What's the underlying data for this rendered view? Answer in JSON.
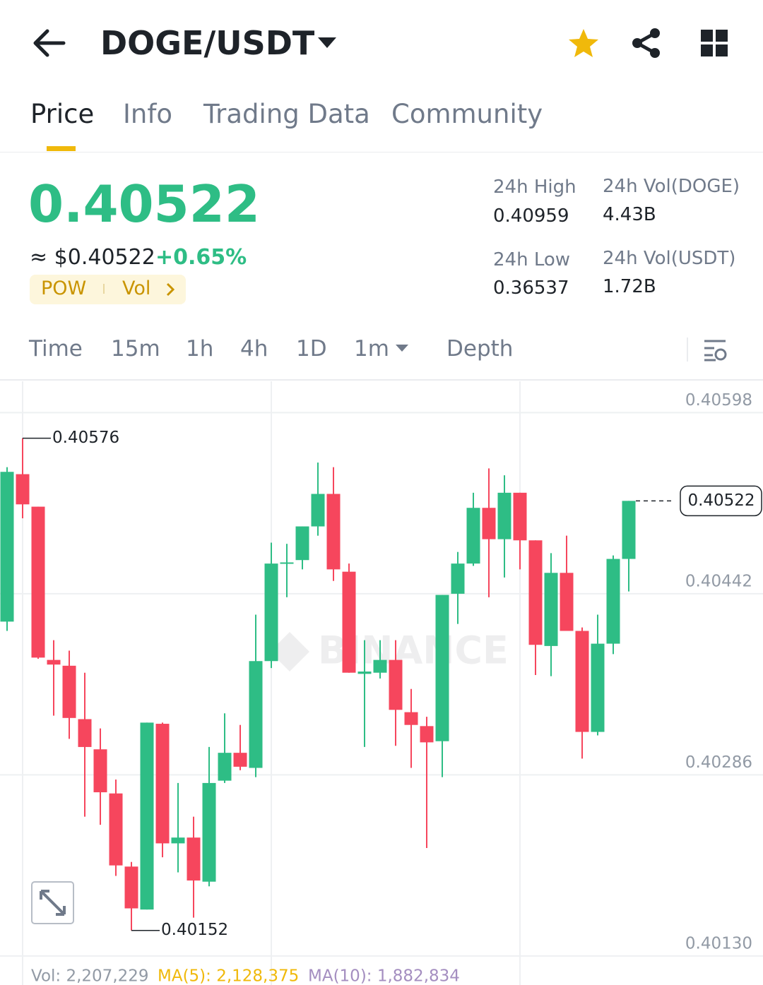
{
  "header": {
    "pair": "DOGE/USDT"
  },
  "tabs": [
    "Price",
    "Info",
    "Trading Data",
    "Community"
  ],
  "active_tab": 0,
  "price": {
    "last": "0.40522",
    "fiat": "≈ $0.40522",
    "change": "+0.65%",
    "tags": [
      "POW",
      "Vol"
    ]
  },
  "stats": [
    {
      "label": "24h High",
      "value": "0.40959"
    },
    {
      "label": "24h Vol(DOGE)",
      "value": "4.43B"
    },
    {
      "label": "24h Low",
      "value": "0.36537"
    },
    {
      "label": "24h Vol(USDT)",
      "value": "1.72B"
    }
  ],
  "intervals": [
    "Time",
    "15m",
    "1h",
    "4h",
    "1D",
    "1m",
    "Depth"
  ],
  "active_interval": 5,
  "chart_data": {
    "type": "candlestick",
    "open": [
      0.40418,
      0.40545,
      0.40517,
      0.40385,
      0.4038,
      0.40334,
      0.40308,
      0.4027,
      0.40207,
      0.4017,
      0.4033,
      0.40227,
      0.40232,
      0.40194,
      0.40281,
      0.40305,
      0.40292,
      0.40384,
      0.40468,
      0.40471,
      0.405,
      0.40528,
      0.40461,
      0.40373,
      0.40374,
      0.40385,
      0.4034,
      0.40328,
      0.40315,
      0.40442,
      0.40468,
      0.40516,
      0.40489,
      0.40529,
      0.40488,
      0.40397,
      0.4046,
      0.4041,
      0.40323,
      0.40399,
      0.40472
    ],
    "high": [
      0.40551,
      0.40576,
      0.40517,
      0.40402,
      0.40393,
      0.40374,
      0.40326,
      0.40282,
      0.40211,
      0.40331,
      0.40331,
      0.40279,
      0.4025,
      0.4031,
      0.40339,
      0.40329,
      0.40424,
      0.40486,
      0.40485,
      0.405,
      0.40555,
      0.40551,
      0.40468,
      0.40402,
      0.40402,
      0.40402,
      0.4036,
      0.40336,
      0.40441,
      0.40478,
      0.40529,
      0.4055,
      0.40544,
      0.40529,
      0.40488,
      0.40477,
      0.40492,
      0.40413,
      0.40424,
      0.40475,
      0.40522
    ],
    "low": [
      0.4041,
      0.40507,
      0.40386,
      0.40337,
      0.40317,
      0.4025,
      0.40243,
      0.40199,
      0.40152,
      0.4017,
      0.40215,
      0.40202,
      0.40163,
      0.4019,
      0.40279,
      0.4029,
      0.40284,
      0.40378,
      0.40439,
      0.40463,
      0.40492,
      0.40453,
      0.40374,
      0.4031,
      0.40369,
      0.40311,
      0.40292,
      0.40223,
      0.40284,
      0.40416,
      0.40466,
      0.40439,
      0.40456,
      0.40463,
      0.40372,
      0.40371,
      0.4041,
      0.403,
      0.4032,
      0.4039,
      0.40444
    ],
    "close": [
      0.40547,
      0.40519,
      0.40387,
      0.40381,
      0.40335,
      0.4031,
      0.40271,
      0.40208,
      0.40171,
      0.40331,
      0.40227,
      0.40232,
      0.40195,
      0.40279,
      0.40305,
      0.40293,
      0.40384,
      0.40468,
      0.40469,
      0.405,
      0.40528,
      0.40463,
      0.40374,
      0.40375,
      0.40385,
      0.40342,
      0.40329,
      0.40314,
      0.40441,
      0.40468,
      0.40516,
      0.40489,
      0.40529,
      0.40488,
      0.40398,
      0.4046,
      0.4041,
      0.40323,
      0.40399,
      0.40472,
      0.40522
    ],
    "up_color": "#2ebd85",
    "down_color": "#f6465d",
    "ylim": [
      0.40105,
      0.40625
    ],
    "yticks": [
      0.40598,
      0.40442,
      0.40286,
      {
        "value": 0.4013,
        "label": "0.40130"
      }
    ],
    "grid": true,
    "high_label": "0.40576",
    "low_label": "0.40152",
    "last_label": "0.40522",
    "watermark": "BINANCE"
  },
  "volume": {
    "vol": "Vol: 2,207,229",
    "ma5": "MA(5): 2,128,375",
    "ma10": "MA(10): 1,882,834"
  }
}
